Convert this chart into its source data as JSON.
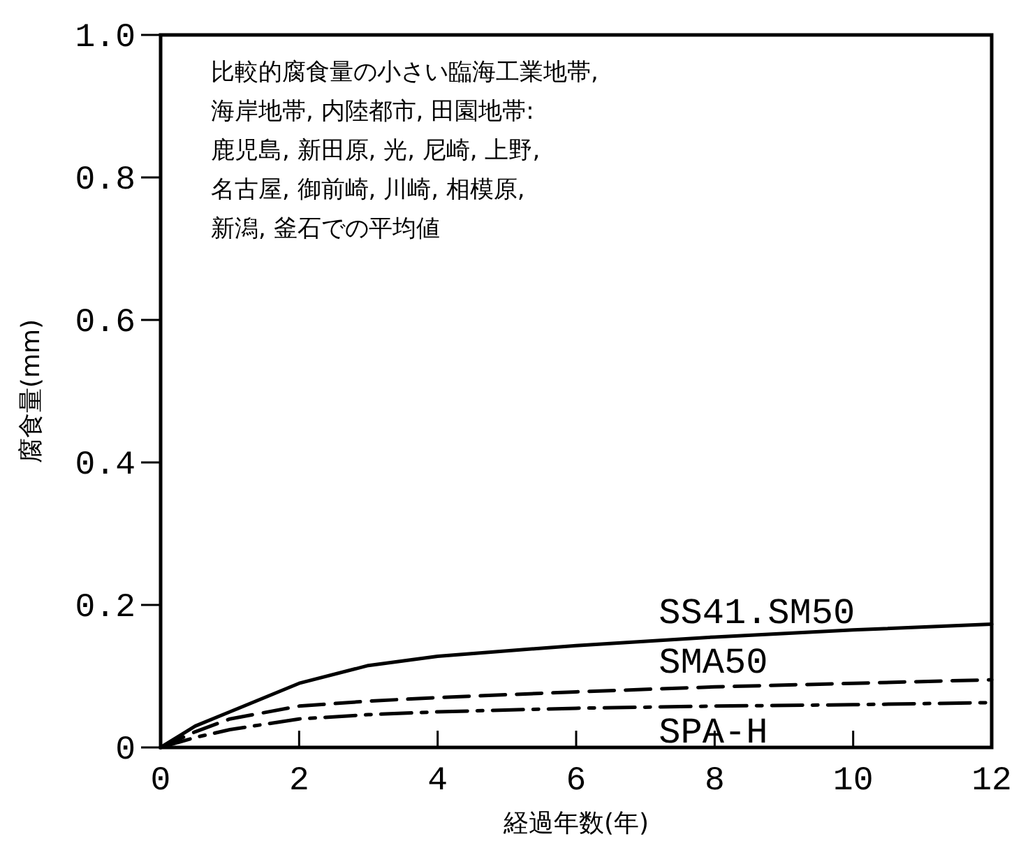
{
  "chart_data": {
    "type": "line",
    "xlabel": "経過年数(年)",
    "ylabel": "腐食量(mm)",
    "annotations": [
      "比較的腐食量の小さい臨海工業地帯,\n海岸地帯, 内陸都市, 田園地帯:\n鹿児島, 新田原, 光, 尼崎, 上野,\n名古屋, 御前崎, 川崎, 相模原,\n新潟, 釜石での平均値"
    ],
    "x": [
      0,
      0.5,
      1,
      2,
      3,
      4,
      6,
      8,
      10,
      12
    ],
    "series": [
      {
        "name": "SS41.SM50",
        "color": "#000000",
        "line_style": "solid",
        "values": [
          0,
          0.03,
          0.05,
          0.09,
          0.115,
          0.128,
          0.143,
          0.155,
          0.165,
          0.173
        ]
      },
      {
        "name": "SMA50",
        "color": "#000000",
        "line_style": "dashed",
        "values": [
          0,
          0.022,
          0.04,
          0.058,
          0.065,
          0.07,
          0.078,
          0.085,
          0.09,
          0.095
        ]
      },
      {
        "name": "SPA-H",
        "color": "#000000",
        "line_style": "dashdot",
        "values": [
          0,
          0.014,
          0.025,
          0.04,
          0.046,
          0.05,
          0.055,
          0.058,
          0.06,
          0.063
        ]
      }
    ],
    "xlim": [
      0,
      12
    ],
    "xticks": [
      0,
      2,
      4,
      6,
      8,
      10,
      12
    ],
    "ylim": [
      0,
      1
    ],
    "yticks": [
      0,
      {
        "value": 0.2,
        "label": "0.2"
      },
      {
        "value": 0.4,
        "label": "0.4"
      },
      {
        "value": 0.6,
        "label": "0.6"
      },
      {
        "value": 0.8,
        "label": "0.8"
      },
      {
        "value": 1,
        "label": "1.0"
      }
    ],
    "grid": false,
    "legend": false
  }
}
